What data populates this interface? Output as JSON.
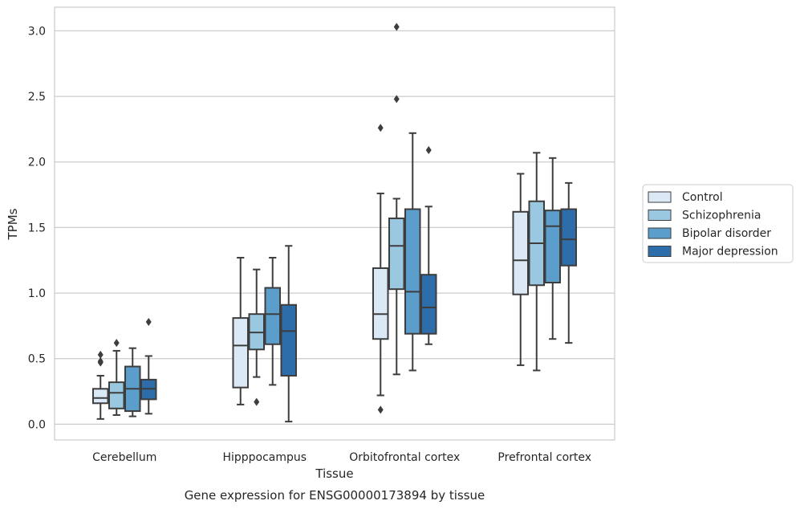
{
  "chart_data": {
    "type": "box",
    "title": "",
    "caption": "Gene expression for ENSG00000173894 by tissue",
    "xlabel": "Tissue",
    "ylabel": "TPMs",
    "ylim": [
      -0.12,
      3.18
    ],
    "yticks": [
      "0.0",
      "0.5",
      "1.0",
      "1.5",
      "2.0",
      "2.5",
      "3.0"
    ],
    "grid": "horizontal",
    "legend_position": "right",
    "categories": [
      "Cerebellum",
      "Hipppocampus",
      "Orbitofrontal cortex",
      "Prefrontal cortex"
    ],
    "series": [
      {
        "name": "Control",
        "color": "#dbe9f6",
        "boxes": [
          {
            "whislo": 0.04,
            "q1": 0.16,
            "med": 0.2,
            "q3": 0.27,
            "whishi": 0.37,
            "fliers": [
              0.47,
              0.48,
              0.53
            ]
          },
          {
            "whislo": 0.15,
            "q1": 0.28,
            "med": 0.6,
            "q3": 0.81,
            "whishi": 1.27,
            "fliers": []
          },
          {
            "whislo": 0.22,
            "q1": 0.65,
            "med": 0.84,
            "q3": 1.19,
            "whishi": 1.76,
            "fliers": [
              2.26,
              0.11
            ]
          },
          {
            "whislo": 0.45,
            "q1": 0.99,
            "med": 1.25,
            "q3": 1.62,
            "whishi": 1.91,
            "fliers": []
          }
        ]
      },
      {
        "name": "Schizophrenia",
        "color": "#9ac8e0",
        "boxes": [
          {
            "whislo": 0.07,
            "q1": 0.12,
            "med": 0.24,
            "q3": 0.32,
            "whishi": 0.56,
            "fliers": [
              0.62
            ]
          },
          {
            "whislo": 0.36,
            "q1": 0.57,
            "med": 0.7,
            "q3": 0.84,
            "whishi": 1.18,
            "fliers": [
              0.17
            ]
          },
          {
            "whislo": 0.38,
            "q1": 1.03,
            "med": 1.36,
            "q3": 1.57,
            "whishi": 1.72,
            "fliers": [
              2.48,
              3.03
            ]
          },
          {
            "whislo": 0.41,
            "q1": 1.06,
            "med": 1.38,
            "q3": 1.7,
            "whishi": 2.07,
            "fliers": []
          }
        ]
      },
      {
        "name": "Bipolar disorder",
        "color": "#5b9ecb",
        "boxes": [
          {
            "whislo": 0.06,
            "q1": 0.1,
            "med": 0.27,
            "q3": 0.44,
            "whishi": 0.58,
            "fliers": []
          },
          {
            "whislo": 0.3,
            "q1": 0.61,
            "med": 0.84,
            "q3": 1.04,
            "whishi": 1.27,
            "fliers": []
          },
          {
            "whislo": 0.41,
            "q1": 0.69,
            "med": 1.01,
            "q3": 1.64,
            "whishi": 2.22,
            "fliers": []
          },
          {
            "whislo": 0.65,
            "q1": 1.08,
            "med": 1.51,
            "q3": 1.63,
            "whishi": 2.03,
            "fliers": []
          }
        ]
      },
      {
        "name": "Major depression",
        "color": "#2d6eaa",
        "boxes": [
          {
            "whislo": 0.08,
            "q1": 0.19,
            "med": 0.27,
            "q3": 0.34,
            "whishi": 0.52,
            "fliers": [
              0.78
            ]
          },
          {
            "whislo": 0.02,
            "q1": 0.37,
            "med": 0.71,
            "q3": 0.91,
            "whishi": 1.36,
            "fliers": []
          },
          {
            "whislo": 0.61,
            "q1": 0.69,
            "med": 0.89,
            "q3": 1.14,
            "whishi": 1.66,
            "fliers": [
              2.09
            ]
          },
          {
            "whislo": 0.62,
            "q1": 1.21,
            "med": 1.41,
            "q3": 1.64,
            "whishi": 1.84,
            "fliers": []
          }
        ]
      }
    ]
  }
}
